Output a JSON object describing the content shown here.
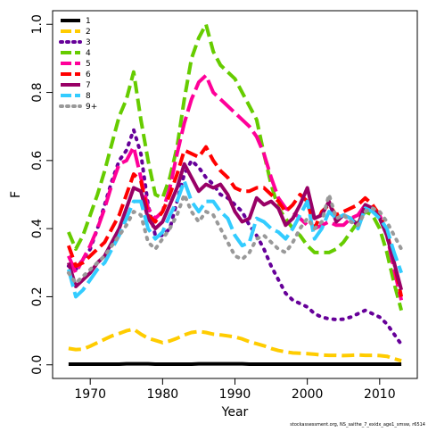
{
  "chart_data": {
    "type": "line",
    "xlabel": "Year",
    "ylabel": "F",
    "xlim": [
      1964.8,
      2015.2
    ],
    "ylim": [
      -0.04,
      1.04
    ],
    "x_ticks": [
      "1970",
      "1980",
      "1990",
      "2000",
      "2010"
    ],
    "y_ticks": [
      "0.0",
      "0.2",
      "0.4",
      "0.6",
      "0.8",
      "1.0"
    ],
    "grid": false,
    "legend_position": "top-left",
    "credit": "stockassessment.org, NS_saithe_7_exidx_age1_smsw, r6514",
    "x": [
      1967,
      1968,
      1969,
      1970,
      1971,
      1972,
      1973,
      1974,
      1975,
      1976,
      1977,
      1978,
      1979,
      1980,
      1981,
      1982,
      1983,
      1984,
      1985,
      1986,
      1987,
      1988,
      1989,
      1990,
      1991,
      1992,
      1993,
      1994,
      1995,
      1996,
      1997,
      1998,
      1999,
      2000,
      2001,
      2002,
      2003,
      2004,
      2005,
      2006,
      2007,
      2008,
      2009,
      2010,
      2011,
      2012,
      2013
    ],
    "series": [
      {
        "name": "1",
        "color": "#000000",
        "dash": "solid",
        "values": [
          0.002,
          0.002,
          0.002,
          0.002,
          0.002,
          0.002,
          0.002,
          0.002,
          0.003,
          0.003,
          0.003,
          0.003,
          0.002,
          0.002,
          0.002,
          0.002,
          0.002,
          0.002,
          0.003,
          0.003,
          0.003,
          0.003,
          0.003,
          0.003,
          0.003,
          0.002,
          0.002,
          0.002,
          0.002,
          0.002,
          0.002,
          0.002,
          0.002,
          0.002,
          0.002,
          0.002,
          0.002,
          0.002,
          0.002,
          0.002,
          0.002,
          0.002,
          0.002,
          0.002,
          0.002,
          0.002,
          0.002
        ]
      },
      {
        "name": "2",
        "color": "#FFCC00",
        "dash": "dash",
        "values": [
          0.048,
          0.045,
          0.046,
          0.055,
          0.065,
          0.075,
          0.085,
          0.092,
          0.1,
          0.105,
          0.09,
          0.078,
          0.072,
          0.065,
          0.07,
          0.078,
          0.088,
          0.095,
          0.098,
          0.095,
          0.09,
          0.088,
          0.085,
          0.082,
          0.076,
          0.068,
          0.062,
          0.056,
          0.048,
          0.042,
          0.038,
          0.035,
          0.034,
          0.033,
          0.031,
          0.029,
          0.028,
          0.028,
          0.027,
          0.028,
          0.029,
          0.028,
          0.028,
          0.027,
          0.025,
          0.018,
          0.012
        ]
      },
      {
        "name": "3",
        "color": "#660099",
        "dash": "dot",
        "values": [
          0.29,
          0.28,
          0.31,
          0.34,
          0.4,
          0.47,
          0.54,
          0.6,
          0.63,
          0.69,
          0.62,
          0.47,
          0.38,
          0.38,
          0.4,
          0.48,
          0.56,
          0.6,
          0.58,
          0.55,
          0.53,
          0.5,
          0.49,
          0.47,
          0.45,
          0.41,
          0.38,
          0.34,
          0.29,
          0.25,
          0.21,
          0.19,
          0.18,
          0.17,
          0.15,
          0.14,
          0.135,
          0.133,
          0.134,
          0.14,
          0.15,
          0.16,
          0.15,
          0.14,
          0.12,
          0.09,
          0.06
        ]
      },
      {
        "name": "4",
        "color": "#66CC00",
        "dash": "dash",
        "values": [
          0.39,
          0.34,
          0.38,
          0.44,
          0.5,
          0.57,
          0.65,
          0.73,
          0.78,
          0.86,
          0.72,
          0.6,
          0.5,
          0.49,
          0.55,
          0.64,
          0.78,
          0.9,
          0.96,
          1.0,
          0.92,
          0.88,
          0.86,
          0.84,
          0.8,
          0.76,
          0.72,
          0.62,
          0.53,
          0.46,
          0.43,
          0.4,
          0.38,
          0.35,
          0.33,
          0.33,
          0.33,
          0.34,
          0.36,
          0.39,
          0.42,
          0.45,
          0.44,
          0.4,
          0.33,
          0.24,
          0.16
        ]
      },
      {
        "name": "5",
        "color": "#FF0099",
        "dash": "longdash",
        "values": [
          0.32,
          0.27,
          0.31,
          0.35,
          0.4,
          0.46,
          0.53,
          0.59,
          0.6,
          0.64,
          0.55,
          0.46,
          0.43,
          0.45,
          0.52,
          0.62,
          0.71,
          0.78,
          0.83,
          0.85,
          0.8,
          0.78,
          0.76,
          0.74,
          0.72,
          0.7,
          0.67,
          0.62,
          0.55,
          0.49,
          0.46,
          0.45,
          0.43,
          0.41,
          0.4,
          0.41,
          0.42,
          0.41,
          0.41,
          0.43,
          0.44,
          0.47,
          0.46,
          0.44,
          0.38,
          0.28,
          0.19
        ]
      },
      {
        "name": "6",
        "color": "#FF0000",
        "dash": "dash",
        "values": [
          0.35,
          0.29,
          0.3,
          0.32,
          0.34,
          0.36,
          0.4,
          0.44,
          0.5,
          0.56,
          0.54,
          0.44,
          0.42,
          0.45,
          0.5,
          0.56,
          0.63,
          0.62,
          0.61,
          0.64,
          0.6,
          0.57,
          0.55,
          0.52,
          0.51,
          0.51,
          0.52,
          0.52,
          0.5,
          0.48,
          0.45,
          0.47,
          0.5,
          0.48,
          0.4,
          0.45,
          0.47,
          0.44,
          0.45,
          0.46,
          0.47,
          0.49,
          0.47,
          0.44,
          0.39,
          0.3,
          0.2
        ]
      },
      {
        "name": "7",
        "color": "#990066",
        "dash": "solid",
        "values": [
          0.3,
          0.23,
          0.25,
          0.27,
          0.3,
          0.32,
          0.36,
          0.4,
          0.46,
          0.52,
          0.51,
          0.43,
          0.4,
          0.42,
          0.47,
          0.52,
          0.59,
          0.55,
          0.51,
          0.53,
          0.52,
          0.53,
          0.5,
          0.45,
          0.42,
          0.43,
          0.49,
          0.47,
          0.48,
          0.46,
          0.41,
          0.43,
          0.47,
          0.52,
          0.43,
          0.44,
          0.48,
          0.42,
          0.44,
          0.43,
          0.41,
          0.47,
          0.46,
          0.43,
          0.38,
          0.3,
          0.22
        ]
      },
      {
        "name": "8",
        "color": "#33CCFF",
        "dash": "longdash",
        "values": [
          0.28,
          0.2,
          0.22,
          0.25,
          0.28,
          0.3,
          0.34,
          0.38,
          0.43,
          0.48,
          0.48,
          0.4,
          0.37,
          0.39,
          0.44,
          0.48,
          0.54,
          0.48,
          0.45,
          0.48,
          0.48,
          0.45,
          0.43,
          0.38,
          0.35,
          0.36,
          0.43,
          0.42,
          0.4,
          0.39,
          0.37,
          0.4,
          0.44,
          0.48,
          0.37,
          0.4,
          0.45,
          0.43,
          0.44,
          0.43,
          0.4,
          0.46,
          0.45,
          0.43,
          0.4,
          0.33,
          0.27
        ]
      },
      {
        "name": "9+",
        "color": "#999999",
        "dash": "dot",
        "values": [
          0.27,
          0.24,
          0.26,
          0.28,
          0.3,
          0.32,
          0.35,
          0.38,
          0.41,
          0.45,
          0.44,
          0.36,
          0.34,
          0.37,
          0.4,
          0.44,
          0.5,
          0.45,
          0.42,
          0.45,
          0.44,
          0.4,
          0.36,
          0.32,
          0.31,
          0.33,
          0.37,
          0.38,
          0.36,
          0.34,
          0.33,
          0.36,
          0.4,
          0.43,
          0.4,
          0.42,
          0.5,
          0.43,
          0.44,
          0.42,
          0.41,
          0.45,
          0.46,
          0.45,
          0.42,
          0.38,
          0.34
        ]
      }
    ]
  }
}
